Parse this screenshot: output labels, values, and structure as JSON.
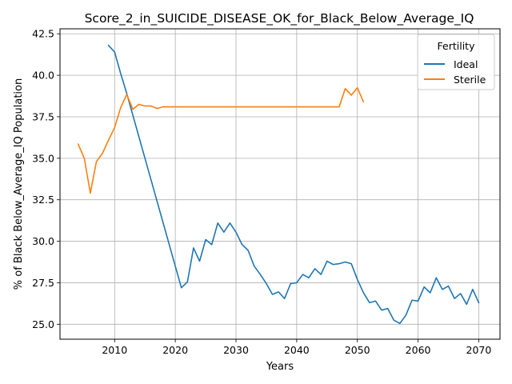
{
  "chart_data": {
    "type": "line",
    "title": "Score_2_in_SUICIDE_DISEASE_OK_for_Black_Below_Average_IQ",
    "xlabel": "Years",
    "ylabel": "% of Black Below_Average_IQ Population",
    "xlim": [
      2001,
      2073.5
    ],
    "ylim": [
      24.1,
      42.8
    ],
    "xticks": [
      2010,
      2020,
      2030,
      2040,
      2050,
      2060,
      2070
    ],
    "yticks": [
      25.0,
      27.5,
      30.0,
      32.5,
      35.0,
      37.5,
      40.0,
      42.5
    ],
    "ytick_labels": [
      "25.0",
      "27.5",
      "30.0",
      "32.5",
      "35.0",
      "37.5",
      "40.0",
      "42.5"
    ],
    "grid": true,
    "legend": {
      "title": "Fertility",
      "position": "top-right"
    },
    "series": [
      {
        "name": "Ideal",
        "color": "#1f77b4",
        "x": [
          2009,
          2010,
          2011,
          2012,
          2013,
          2014,
          2015,
          2016,
          2017,
          2018,
          2019,
          2020,
          2021,
          2022,
          2023,
          2024,
          2025,
          2026,
          2027,
          2028,
          2029,
          2030,
          2031,
          2032,
          2033,
          2034,
          2035,
          2036,
          2037,
          2038,
          2039,
          2040,
          2041,
          2042,
          2043,
          2044,
          2045,
          2046,
          2047,
          2048,
          2049,
          2050,
          2051,
          2052,
          2053,
          2054,
          2055,
          2056,
          2057,
          2058,
          2059,
          2060,
          2061,
          2062,
          2063,
          2064,
          2065,
          2066,
          2067,
          2068,
          2069,
          2070
        ],
        "values": [
          41.8,
          41.4,
          40.1,
          38.9,
          37.6,
          36.3,
          35.0,
          33.7,
          32.4,
          31.1,
          29.8,
          28.5,
          27.2,
          27.55,
          29.6,
          28.8,
          30.1,
          29.8,
          31.1,
          30.55,
          31.1,
          30.55,
          29.8,
          29.45,
          28.5,
          28.0,
          27.45,
          26.8,
          26.95,
          26.55,
          27.45,
          27.5,
          28.0,
          27.8,
          28.35,
          28.0,
          28.8,
          28.6,
          28.65,
          28.75,
          28.65,
          27.7,
          26.9,
          26.3,
          26.4,
          25.85,
          25.95,
          25.25,
          25.05,
          25.55,
          26.45,
          26.4,
          27.25,
          26.9,
          27.8,
          27.1,
          27.3,
          26.55,
          26.85,
          26.2,
          27.1,
          26.3
        ]
      },
      {
        "name": "Sterile",
        "color": "#ff7f0e",
        "x": [
          2004,
          2005,
          2006,
          2007,
          2008,
          2009,
          2010,
          2011,
          2012,
          2013,
          2014,
          2015,
          2016,
          2017,
          2018,
          2019,
          2020,
          2021,
          2022,
          2023,
          2024,
          2025,
          2026,
          2027,
          2028,
          2029,
          2030,
          2031,
          2032,
          2033,
          2034,
          2035,
          2036,
          2037,
          2038,
          2039,
          2040,
          2041,
          2042,
          2043,
          2044,
          2045,
          2046,
          2047,
          2048,
          2049,
          2050,
          2051
        ],
        "values": [
          35.85,
          35.0,
          32.9,
          34.8,
          35.3,
          36.1,
          36.85,
          38.05,
          38.85,
          37.95,
          38.25,
          38.15,
          38.15,
          38.0,
          38.1,
          38.1,
          38.1,
          38.1,
          38.1,
          38.1,
          38.1,
          38.1,
          38.1,
          38.1,
          38.1,
          38.1,
          38.1,
          38.1,
          38.1,
          38.1,
          38.1,
          38.1,
          38.1,
          38.1,
          38.1,
          38.1,
          38.1,
          38.1,
          38.1,
          38.1,
          38.1,
          38.1,
          38.1,
          38.1,
          39.2,
          38.8,
          39.25,
          38.4
        ]
      }
    ]
  }
}
